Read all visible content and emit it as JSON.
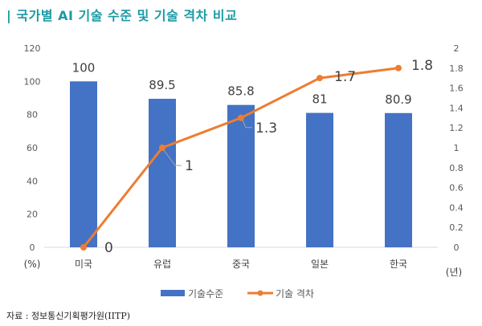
{
  "title": "| 국가별 AI 기술 수준 및 기술 격차 비교",
  "source": "자료 : 정보통신기획평가원(IITP)",
  "chart_data": {
    "type": "bar+line",
    "categories": [
      "미국",
      "유럽",
      "중국",
      "일본",
      "한국"
    ],
    "series": [
      {
        "name": "기술수준",
        "type": "bar",
        "axis": "left",
        "color": "#4472c4",
        "values": [
          100,
          89.5,
          85.8,
          81,
          80.9
        ]
      },
      {
        "name": "기술 격차",
        "type": "line",
        "axis": "right",
        "color": "#ed7d31",
        "values": [
          0,
          1,
          1.3,
          1.7,
          1.8
        ]
      }
    ],
    "left_axis": {
      "label": "(%)",
      "ylim": [
        0,
        120
      ],
      "ticks": [
        "0",
        "20",
        "40",
        "60",
        "80",
        "100",
        "120"
      ]
    },
    "right_axis": {
      "label": "(년)",
      "ylim": [
        0,
        2
      ],
      "ticks": [
        "0",
        "0.2",
        "0.4",
        "0.6",
        "0.8",
        "1",
        "1.2",
        "1.4",
        "1.6",
        "1.8",
        "2"
      ]
    },
    "legend": "bottom",
    "grid": false
  }
}
